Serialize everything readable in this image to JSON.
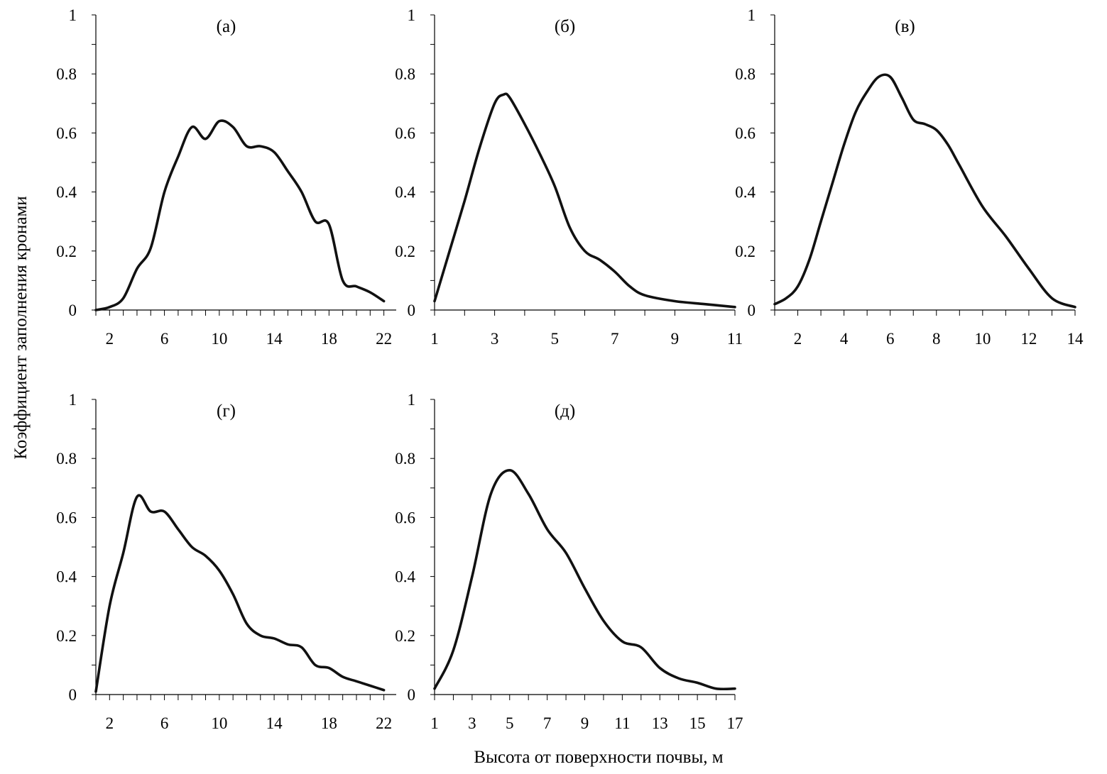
{
  "chart_data": {
    "type": "line",
    "ylabel": "Коэффициент заполнения кронами",
    "xlabel": "Высота от поверхности почвы, м",
    "line_color": "#111111",
    "axis_color": "#000000",
    "panels": [
      {
        "id": "a",
        "title": "(а)",
        "xlim": [
          1,
          22.9
        ],
        "ylim": [
          0,
          1
        ],
        "xticks": [
          2,
          6,
          10,
          14,
          18,
          22
        ],
        "xtick_labels": [
          "2",
          "6",
          "10",
          "14",
          "18",
          "22"
        ],
        "yticks": [
          0,
          0.2,
          0.4,
          0.6,
          0.8,
          1
        ],
        "ytick_labels": [
          "0",
          "0.2",
          "0.4",
          "0.6",
          "0.8",
          "1"
        ],
        "series": [
          {
            "name": "(а)",
            "x": [
              1,
              2,
              3,
              4,
              5,
              6,
              7,
              8,
              9,
              10,
              11,
              12,
              13,
              14,
              15,
              16,
              17,
              18,
              19,
              20,
              21,
              22
            ],
            "y": [
              0.0,
              0.01,
              0.04,
              0.14,
              0.21,
              0.4,
              0.52,
              0.62,
              0.58,
              0.64,
              0.62,
              0.555,
              0.555,
              0.535,
              0.47,
              0.4,
              0.3,
              0.29,
              0.1,
              0.08,
              0.06,
              0.03
            ]
          }
        ]
      },
      {
        "id": "b",
        "title": "(б)",
        "xlim": [
          1,
          11
        ],
        "ylim": [
          0,
          1
        ],
        "xticks": [
          1,
          3,
          5,
          7,
          9,
          11
        ],
        "xtick_labels": [
          "1",
          "3",
          "5",
          "7",
          "9",
          "11"
        ],
        "yticks": [
          0,
          0.2,
          0.4,
          0.6,
          0.8,
          1
        ],
        "ytick_labels": [
          "0",
          "0.2",
          "0.4",
          "0.6",
          "0.8",
          "1"
        ],
        "series": [
          {
            "name": "(б)",
            "x": [
              1,
              1.5,
              2,
              2.5,
              3,
              3.3,
              3.5,
              4,
              4.5,
              5,
              5.5,
              6,
              6.5,
              7,
              7.5,
              8,
              9,
              10,
              11
            ],
            "y": [
              0.03,
              0.2,
              0.37,
              0.55,
              0.7,
              0.73,
              0.72,
              0.63,
              0.53,
              0.42,
              0.28,
              0.2,
              0.17,
              0.13,
              0.08,
              0.05,
              0.03,
              0.02,
              0.01
            ]
          }
        ]
      },
      {
        "id": "v",
        "title": "(в)",
        "xlim": [
          1,
          14
        ],
        "ylim": [
          0,
          1
        ],
        "xticks": [
          2,
          4,
          6,
          8,
          10,
          12,
          14
        ],
        "xtick_labels": [
          "2",
          "4",
          "6",
          "8",
          "10",
          "12",
          "14"
        ],
        "yticks": [
          0,
          0.2,
          0.4,
          0.6,
          0.8,
          1
        ],
        "ytick_labels": [
          "0",
          "0.2",
          "0.4",
          "0.6",
          "0.8",
          "1"
        ],
        "series": [
          {
            "name": "(в)",
            "x": [
              1,
              1.5,
              2,
              2.5,
              3,
              3.5,
              4,
              4.5,
              5,
              5.5,
              6,
              6.5,
              7,
              7.5,
              8,
              8.5,
              9,
              10,
              11,
              12,
              13,
              14
            ],
            "y": [
              0.02,
              0.04,
              0.08,
              0.17,
              0.3,
              0.43,
              0.56,
              0.67,
              0.74,
              0.79,
              0.79,
              0.72,
              0.645,
              0.63,
              0.61,
              0.56,
              0.49,
              0.35,
              0.25,
              0.14,
              0.04,
              0.01
            ]
          }
        ]
      },
      {
        "id": "g",
        "title": "(г)",
        "xlim": [
          1,
          22.9
        ],
        "ylim": [
          0,
          1
        ],
        "xticks": [
          2,
          6,
          10,
          14,
          18,
          22
        ],
        "xtick_labels": [
          "2",
          "6",
          "10",
          "14",
          "18",
          "22"
        ],
        "yticks": [
          0,
          0.2,
          0.4,
          0.6,
          0.8,
          1
        ],
        "ytick_labels": [
          "0",
          "0.2",
          "0.4",
          "0.6",
          "0.8",
          "1"
        ],
        "series": [
          {
            "name": "(г)",
            "x": [
              1,
              2,
              3,
              4,
              5,
              6,
              7,
              8,
              9,
              10,
              11,
              12,
              13,
              14,
              15,
              16,
              17,
              18,
              19,
              20,
              21,
              22
            ],
            "y": [
              0.01,
              0.3,
              0.48,
              0.67,
              0.62,
              0.62,
              0.56,
              0.5,
              0.47,
              0.42,
              0.34,
              0.24,
              0.2,
              0.19,
              0.17,
              0.16,
              0.1,
              0.09,
              0.06,
              0.045,
              0.03,
              0.015
            ]
          }
        ]
      },
      {
        "id": "d",
        "title": "(д)",
        "xlim": [
          1,
          17
        ],
        "ylim": [
          0,
          1
        ],
        "xticks": [
          1,
          3,
          5,
          7,
          9,
          11,
          13,
          15,
          17
        ],
        "xtick_labels": [
          "1",
          "3",
          "5",
          "7",
          "9",
          "11",
          "13",
          "15",
          "17"
        ],
        "yticks": [
          0,
          0.2,
          0.4,
          0.6,
          0.8,
          1
        ],
        "ytick_labels": [
          "0",
          "0.2",
          "0.4",
          "0.6",
          "0.8",
          "1"
        ],
        "series": [
          {
            "name": "(д)",
            "x": [
              1,
              2,
              3,
              4,
              5,
              6,
              7,
              8,
              9,
              10,
              11,
              12,
              13,
              14,
              15,
              16,
              17
            ],
            "y": [
              0.02,
              0.15,
              0.4,
              0.68,
              0.76,
              0.68,
              0.56,
              0.48,
              0.36,
              0.25,
              0.18,
              0.16,
              0.09,
              0.055,
              0.04,
              0.02,
              0.02
            ]
          }
        ]
      }
    ]
  }
}
